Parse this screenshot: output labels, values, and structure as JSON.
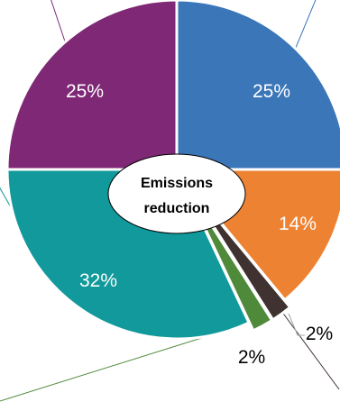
{
  "chart_data": {
    "type": "pie",
    "center_label": [
      "Emissions",
      "reduction"
    ],
    "slices": [
      {
        "label": "25%",
        "value": 25,
        "color": "#3a76b8",
        "label_color": "#ffffff"
      },
      {
        "label": "14%",
        "value": 14,
        "color": "#ee8233",
        "label_color": "#ffffff"
      },
      {
        "label": "2%",
        "value": 2,
        "color": "#3f3230",
        "label_color": "#000000"
      },
      {
        "label": "2%",
        "value": 2,
        "color": "#4f8a3b",
        "label_color": "#000000"
      },
      {
        "label": "32%",
        "value": 32,
        "color": "#11999b",
        "label_color": "#ffffff"
      },
      {
        "label": "25%",
        "value": 25,
        "color": "#7e2876",
        "label_color": "#ffffff"
      }
    ]
  }
}
